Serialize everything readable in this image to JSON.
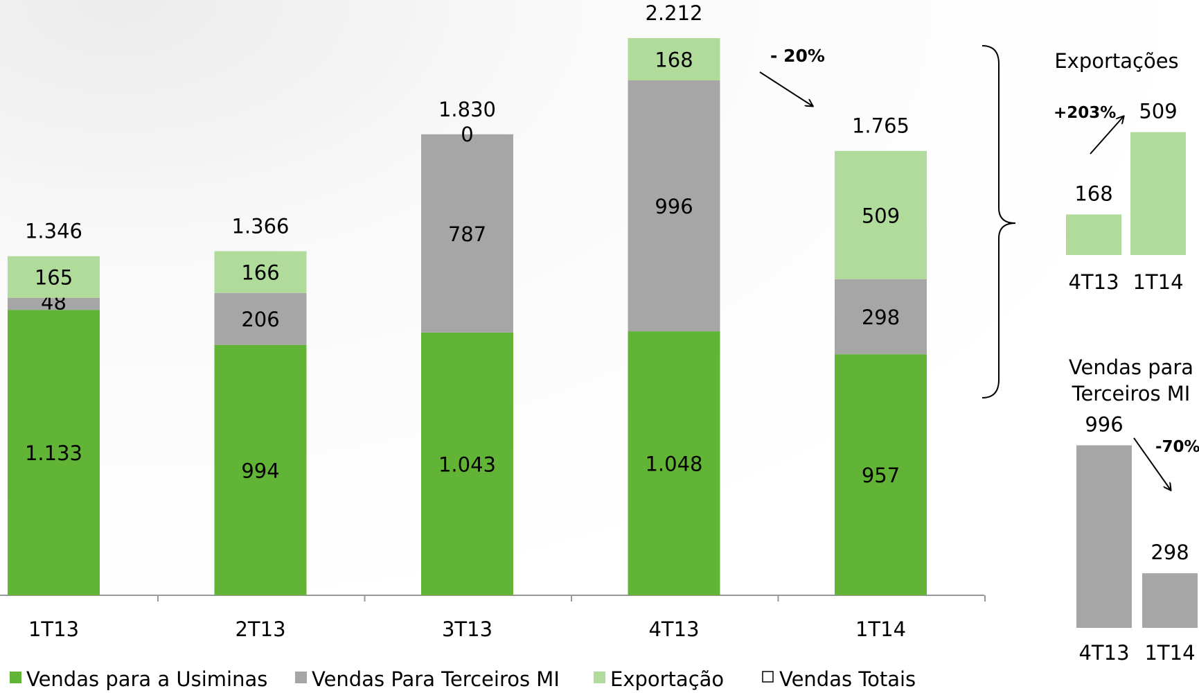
{
  "chart_data": [
    {
      "type": "bar",
      "stacked": true,
      "categories": [
        "1T13",
        "2T13",
        "3T13",
        "4T13",
        "1T14"
      ],
      "series": [
        {
          "name": "Vendas para a Usiminas",
          "color": "#62b436",
          "values": [
            1133,
            994,
            1043,
            1048,
            957
          ],
          "labels": [
            "1.133",
            "994",
            "1.043",
            "1.048",
            "957"
          ]
        },
        {
          "name": "Vendas Para Terceiros MI",
          "color": "#a6a6a6",
          "values": [
            48,
            206,
            787,
            996,
            298
          ],
          "labels": [
            "48",
            "206",
            "787",
            "996",
            "298"
          ]
        },
        {
          "name": "Exportação",
          "color": "#b0db9a",
          "values": [
            165,
            166,
            0,
            168,
            509
          ],
          "labels": [
            "165",
            "166",
            "0",
            "168",
            "509"
          ]
        }
      ],
      "totals": {
        "name": "Vendas Totais",
        "values": [
          1346,
          1366,
          1830,
          2212,
          1765
        ],
        "labels": [
          "1.346",
          "1.366",
          "1.830",
          "2.212",
          "1.765"
        ]
      },
      "annotations": [
        {
          "text": "- 20%",
          "from": "4T13",
          "to": "1T14"
        }
      ],
      "legend": {
        "placement": "bottom"
      },
      "grid": false
    },
    {
      "type": "bar",
      "title": "Exportações",
      "categories": [
        "4T13",
        "1T14"
      ],
      "values": [
        168,
        509
      ],
      "labels": [
        "168",
        "509"
      ],
      "color": "#b0db9a",
      "annotation": "+203%"
    },
    {
      "type": "bar",
      "title": "Vendas para Terceiros MI",
      "categories": [
        "4T13",
        "1T14"
      ],
      "values": [
        996,
        298
      ],
      "labels": [
        "996",
        "298"
      ],
      "color": "#a6a6a6",
      "annotation": "-70%"
    }
  ]
}
